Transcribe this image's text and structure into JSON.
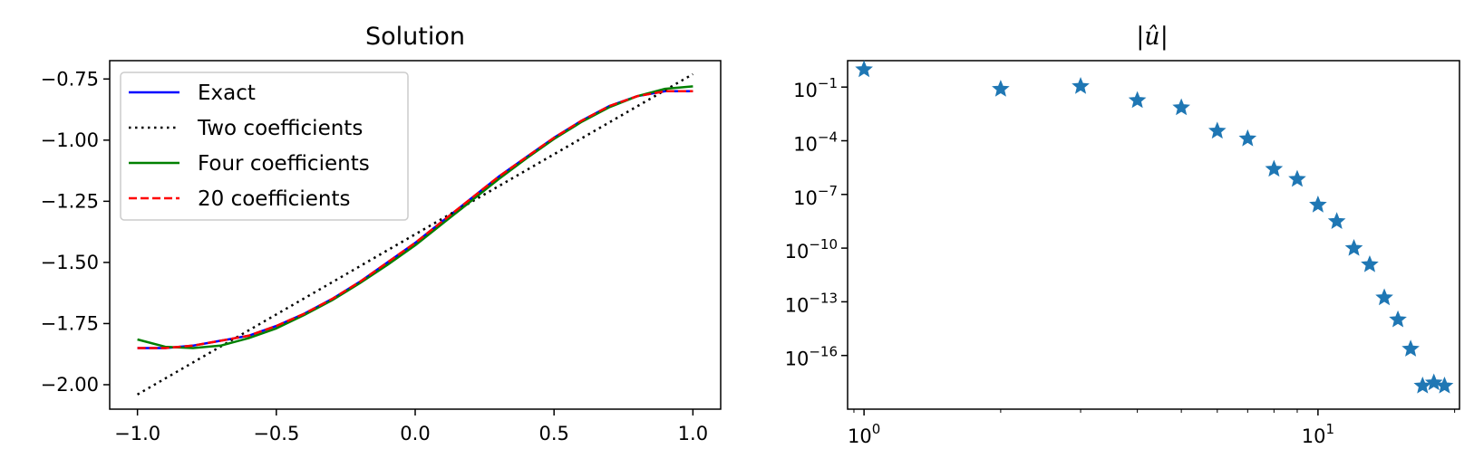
{
  "chart_data": [
    {
      "type": "line",
      "title": "Solution",
      "xlabel": "",
      "ylabel": "",
      "xlim": [
        -1.1,
        1.1
      ],
      "ylim": [
        -2.1,
        -0.675
      ],
      "x_ticks": [
        -1.0,
        -0.5,
        0.0,
        0.5,
        1.0
      ],
      "x_tick_labels": [
        "−1.0",
        "−0.5",
        "0.0",
        "0.5",
        "1.0"
      ],
      "y_ticks": [
        -0.75,
        -1.0,
        -1.25,
        -1.5,
        -1.75,
        -2.0
      ],
      "y_tick_labels": [
        "−0.75",
        "−1.00",
        "−1.25",
        "−1.50",
        "−1.75",
        "−2.00"
      ],
      "grid": false,
      "legend_position": "top-left",
      "series": [
        {
          "name": "Exact",
          "color": "#0000ff",
          "style": "solid",
          "x": [
            -1.0,
            -0.9,
            -0.8,
            -0.7,
            -0.6,
            -0.5,
            -0.4,
            -0.3,
            -0.2,
            -0.1,
            0.0,
            0.1,
            0.2,
            0.3,
            0.4,
            0.5,
            0.6,
            0.7,
            0.8,
            0.9,
            1.0
          ],
          "y": [
            -1.85,
            -1.85,
            -1.84,
            -1.82,
            -1.8,
            -1.76,
            -1.71,
            -1.65,
            -1.58,
            -1.5,
            -1.42,
            -1.33,
            -1.24,
            -1.15,
            -1.07,
            -0.99,
            -0.92,
            -0.86,
            -0.82,
            -0.8,
            -0.8
          ]
        },
        {
          "name": "Two coefficients",
          "color": "#000000",
          "style": "dotted",
          "x": [
            -1.0,
            1.0
          ],
          "y": [
            -2.04,
            -0.73
          ]
        },
        {
          "name": "Four coefficients",
          "color": "#008000",
          "style": "solid",
          "x": [
            -1.0,
            -0.9,
            -0.8,
            -0.7,
            -0.6,
            -0.5,
            -0.4,
            -0.3,
            -0.2,
            -0.1,
            0.0,
            0.1,
            0.2,
            0.3,
            0.4,
            0.5,
            0.6,
            0.7,
            0.8,
            0.9,
            1.0
          ],
          "y": [
            -1.815,
            -1.845,
            -1.85,
            -1.84,
            -1.81,
            -1.77,
            -1.715,
            -1.655,
            -1.585,
            -1.51,
            -1.43,
            -1.34,
            -1.25,
            -1.16,
            -1.075,
            -0.995,
            -0.925,
            -0.865,
            -0.82,
            -0.79,
            -0.78
          ]
        },
        {
          "name": "20 coefficients",
          "color": "#ff0000",
          "style": "dashed",
          "x": [
            -1.0,
            -0.9,
            -0.8,
            -0.7,
            -0.6,
            -0.5,
            -0.4,
            -0.3,
            -0.2,
            -0.1,
            0.0,
            0.1,
            0.2,
            0.3,
            0.4,
            0.5,
            0.6,
            0.7,
            0.8,
            0.9,
            1.0
          ],
          "y": [
            -1.85,
            -1.85,
            -1.84,
            -1.82,
            -1.8,
            -1.76,
            -1.71,
            -1.65,
            -1.58,
            -1.5,
            -1.42,
            -1.33,
            -1.24,
            -1.15,
            -1.07,
            -0.99,
            -0.92,
            -0.86,
            -0.82,
            -0.8,
            -0.8
          ]
        }
      ]
    },
    {
      "type": "scatter",
      "title": "|û|",
      "xlabel": "",
      "ylabel": "",
      "x_scale": "log",
      "y_scale": "log",
      "xlim": [
        0.92,
        20.5
      ],
      "ylim": [
        1e-19,
        3.0
      ],
      "x_ticks": [
        1,
        10
      ],
      "x_tick_labels": [
        {
          "base": "10",
          "exp": "0"
        },
        {
          "base": "10",
          "exp": "1"
        }
      ],
      "y_ticks": [
        0.1,
        0.0001,
        1e-07,
        1e-10,
        1e-13,
        1e-16
      ],
      "y_tick_labels": [
        {
          "base": "10",
          "exp": "−1"
        },
        {
          "base": "10",
          "exp": "−4"
        },
        {
          "base": "10",
          "exp": "−7"
        },
        {
          "base": "10",
          "exp": "−10"
        },
        {
          "base": "10",
          "exp": "−13"
        },
        {
          "base": "10",
          "exp": "−16"
        }
      ],
      "grid": false,
      "marker": "star",
      "color": "#1f77b4",
      "x": [
        1,
        2,
        3,
        4,
        5,
        6,
        7,
        8,
        9,
        10,
        11,
        12,
        13,
        14,
        15,
        16,
        17,
        18,
        19
      ],
      "y": [
        0.95,
        0.077,
        0.11,
        0.018,
        0.0071,
        0.00035,
        0.00013,
        2.6e-06,
        7.1e-07,
        2.6e-08,
        3.1e-09,
        9.8e-11,
        1.2e-11,
        1.7e-13,
        1e-14,
        2.3e-16,
        2e-18,
        3e-18,
        2e-18
      ]
    }
  ]
}
